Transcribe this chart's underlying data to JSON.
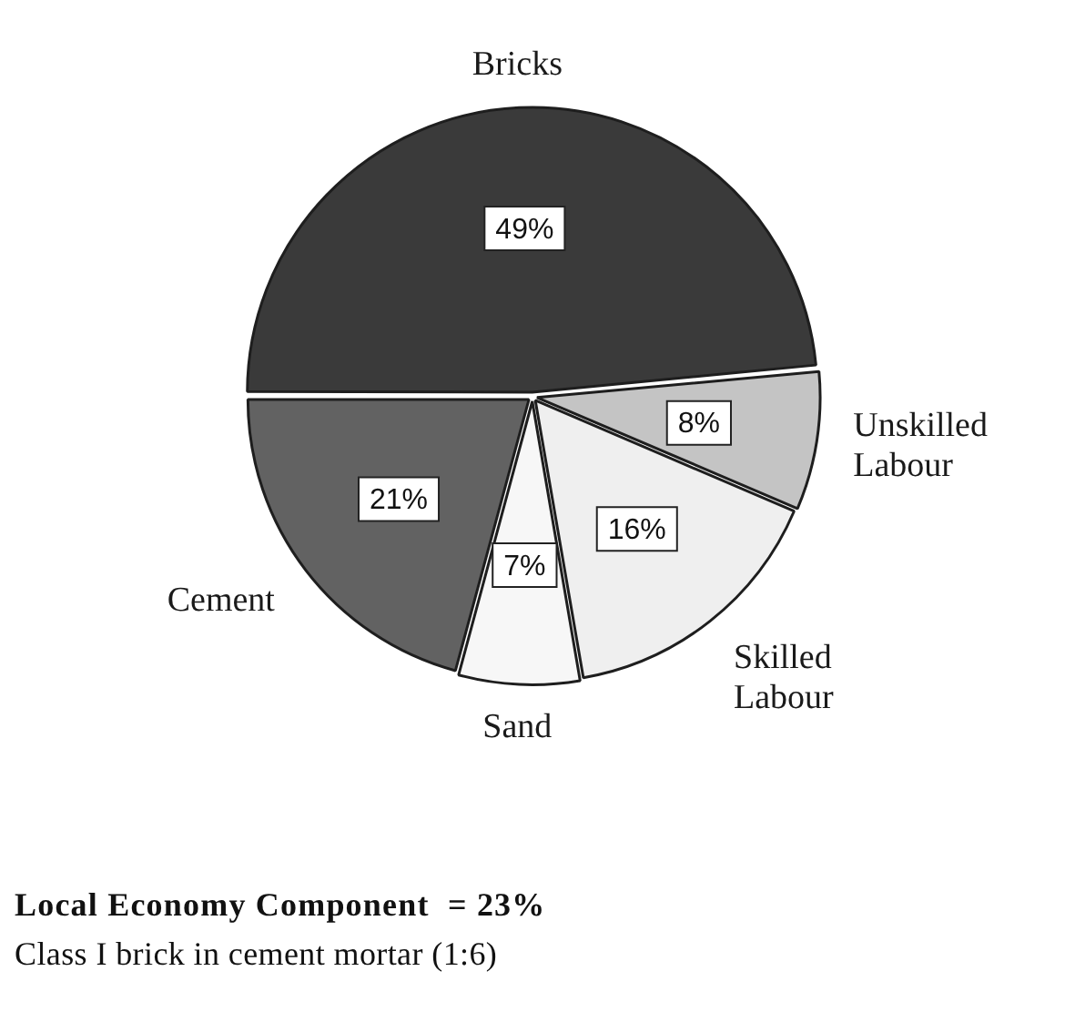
{
  "chart_data": {
    "type": "pie",
    "categories": [
      "Bricks",
      "Unskilled Labour",
      "Skilled Labour",
      "Sand",
      "Cement"
    ],
    "values": [
      49,
      8,
      16,
      7,
      21
    ],
    "colors": [
      "#3a3a3a",
      "#c4c4c4",
      "#efefef",
      "#f7f7f7",
      "#626262"
    ],
    "value_labels": [
      "49%",
      "8%",
      "16%",
      "7%",
      "21%"
    ],
    "annotations": [
      "Local Economy Component  = 23%",
      "Class I brick in cement mortar (1:6)"
    ]
  }
}
